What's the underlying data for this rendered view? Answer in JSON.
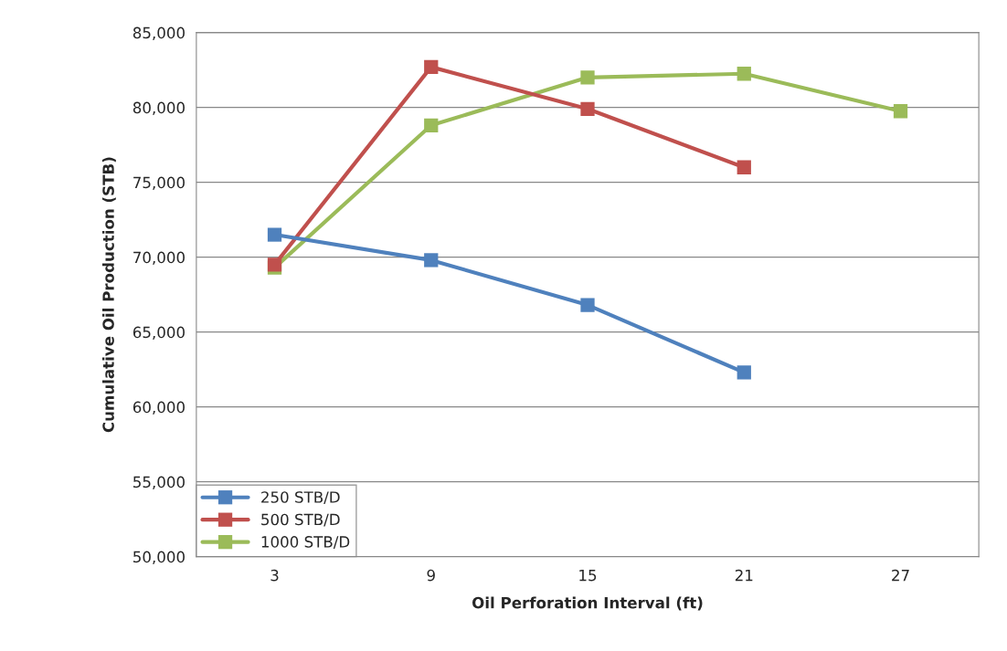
{
  "chart_data": {
    "type": "line",
    "xlabel": "Oil Perforation Interval (ft)",
    "ylabel": "Cumulative Oil Production (STB)",
    "categories": [
      "3",
      "9",
      "15",
      "21",
      "27"
    ],
    "series": [
      {
        "name": "250 STB/D",
        "color": "#4f81bd",
        "values": [
          71500,
          69800,
          66800,
          62300,
          null
        ]
      },
      {
        "name": "500 STB/D",
        "color": "#c0504d",
        "values": [
          69500,
          82700,
          79900,
          76000,
          null
        ]
      },
      {
        "name": "1000 STB/D",
        "color": "#9bbb59",
        "values": [
          69300,
          78800,
          82000,
          82250,
          79750
        ]
      }
    ],
    "ylim": [
      50000,
      85000
    ],
    "yticks": [
      {
        "value": 50000,
        "label": "50,000"
      },
      {
        "value": 55000,
        "label": "55,000"
      },
      {
        "value": 60000,
        "label": "60,000"
      },
      {
        "value": 65000,
        "label": "65,000"
      },
      {
        "value": 70000,
        "label": "70,000"
      },
      {
        "value": 75000,
        "label": "75,000"
      },
      {
        "value": 80000,
        "label": "80,000"
      },
      {
        "value": 85000,
        "label": "85,000"
      }
    ],
    "grid": "y",
    "legend": "bottom left",
    "marker": "square",
    "line_style": "solid"
  }
}
